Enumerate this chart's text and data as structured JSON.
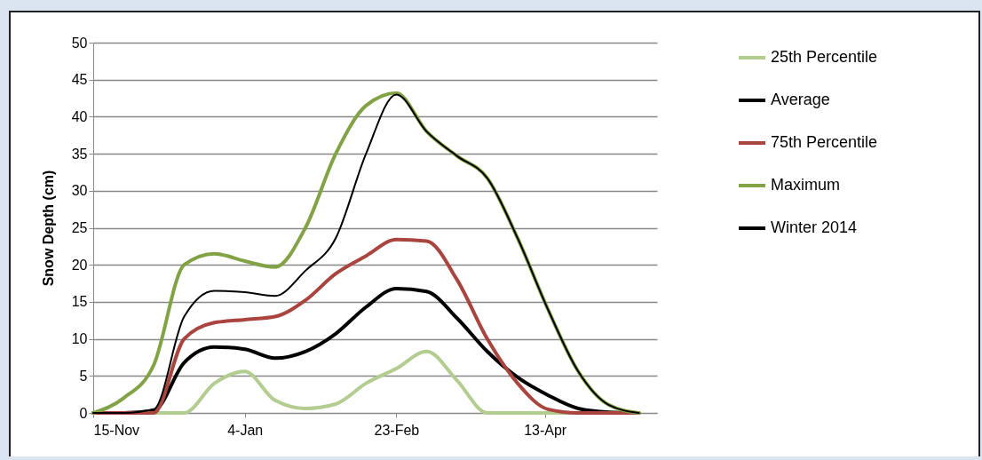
{
  "chart_data": {
    "type": "line",
    "ylabel": "Snow Depth (cm)",
    "x": [
      "2013-11-15",
      "2013-11-25",
      "2013-12-05",
      "2013-12-15",
      "2013-12-25",
      "2014-01-04",
      "2014-01-14",
      "2014-01-24",
      "2014-02-03",
      "2014-02-13",
      "2014-02-23",
      "2014-03-05",
      "2014-03-15",
      "2014-03-25",
      "2014-04-04",
      "2014-04-14",
      "2014-04-24",
      "2014-05-04",
      "2014-05-14"
    ],
    "xlim": [
      "2013-11-15",
      "2014-05-20"
    ],
    "xticks": [
      {
        "value": "2013-11-15",
        "label": "15-Nov"
      },
      {
        "value": "2014-01-04",
        "label": "4-Jan"
      },
      {
        "value": "2014-02-23",
        "label": "23-Feb"
      },
      {
        "value": "2014-04-13",
        "label": "13-Apr"
      }
    ],
    "ylim": [
      0,
      50
    ],
    "yticks": [
      0,
      5,
      10,
      15,
      20,
      25,
      30,
      35,
      40,
      45,
      50
    ],
    "grid": "y",
    "legend": "right",
    "series": [
      {
        "name": "25th Percentile",
        "color": "#b3cc8f",
        "values": [
          0,
          0,
          0,
          0,
          4,
          5.6,
          1.7,
          0.6,
          1.2,
          4,
          6,
          8.3,
          4.4,
          0,
          0,
          0,
          0,
          0,
          0
        ]
      },
      {
        "name": "Average",
        "color": "#000000",
        "values": [
          0,
          0,
          0.3,
          6.8,
          8.9,
          8.6,
          7.4,
          8.3,
          10.7,
          14.3,
          16.8,
          16.4,
          12.8,
          8.3,
          4.8,
          2.4,
          0.6,
          0.1,
          0
        ]
      },
      {
        "name": "75th Percentile",
        "color": "#a9443f",
        "values": [
          0,
          0,
          0,
          10,
          12.2,
          12.6,
          13,
          15.2,
          18.8,
          21.2,
          23.4,
          23.2,
          18,
          10,
          4,
          0.5,
          0,
          0,
          0
        ]
      },
      {
        "name": "Maximum",
        "color": "#82a345",
        "values": [
          0,
          2,
          6.5,
          20,
          21.5,
          20.5,
          19.7,
          25,
          35,
          41.5,
          43.2,
          38,
          34.7,
          31.7,
          23.6,
          14,
          5.6,
          1.1,
          0
        ]
      },
      {
        "name": "Winter 2014",
        "color": "#000000",
        "values": [
          0,
          0,
          0.5,
          13,
          16.5,
          16.3,
          15.8,
          19.2,
          23.6,
          35,
          43,
          38,
          34.7,
          31.7,
          23.6,
          14,
          5.6,
          1.1,
          0
        ]
      }
    ]
  }
}
